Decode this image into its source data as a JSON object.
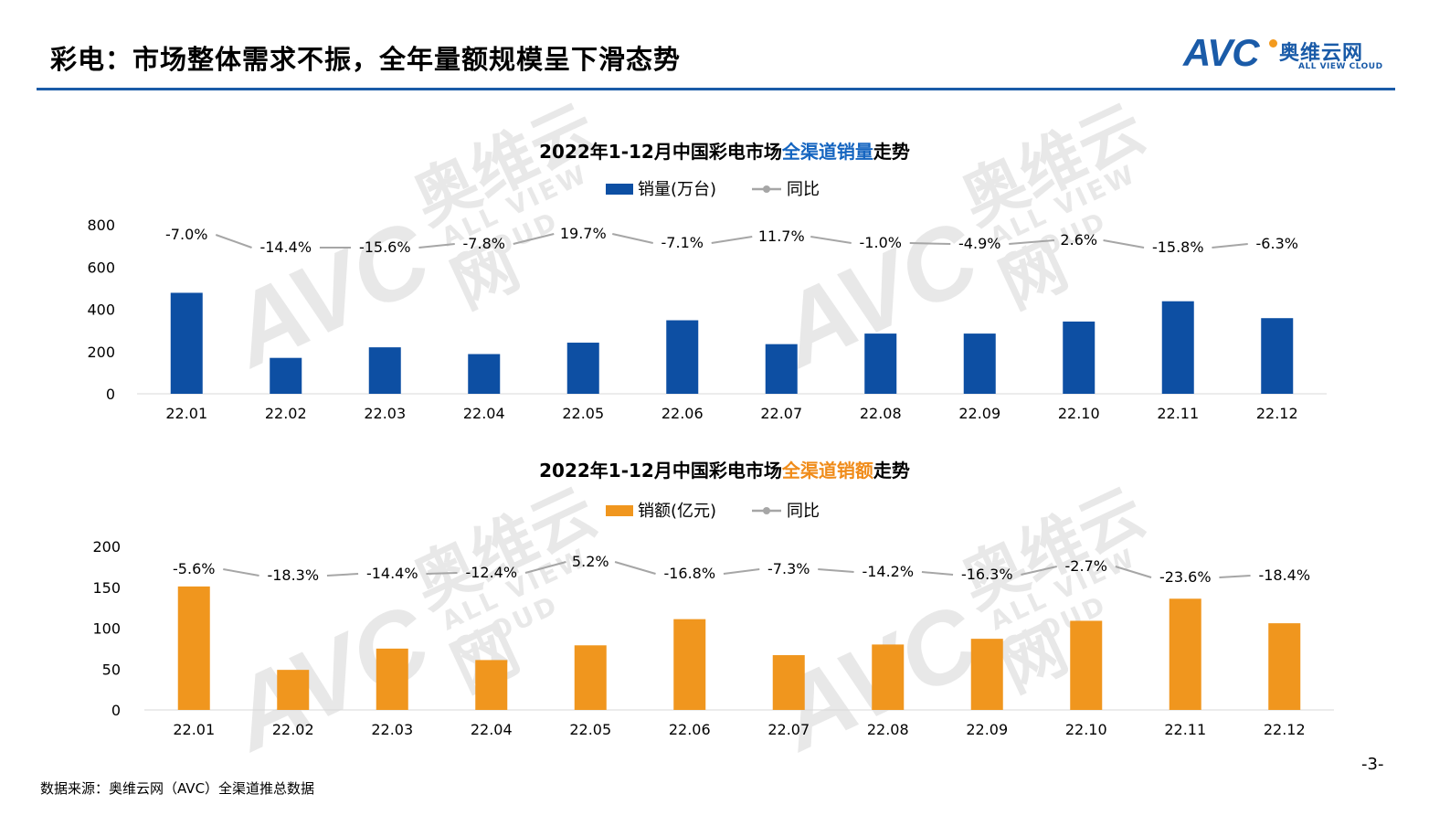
{
  "page": {
    "title": "彩电：市场整体需求不振，全年量额规模呈下滑态势",
    "logo_avc": "AVC",
    "logo_cn": "奥维云网",
    "logo_en": "ALL VIEW CLOUD",
    "source": "数据来源：奥维云网（AVC）全渠道推总数据",
    "page_number": "-3-",
    "colors": {
      "brand_blue": "#1a5ba8",
      "brand_orange": "#f39a1e"
    }
  },
  "chart_data": [
    {
      "type": "bar",
      "title_parts": [
        "2022年1-12月中国彩电市场",
        "全渠道销量",
        "走势"
      ],
      "title_highlight_color": "#1565c0",
      "categories": [
        "22.01",
        "22.02",
        "22.03",
        "22.04",
        "22.05",
        "22.06",
        "22.07",
        "22.08",
        "22.09",
        "22.10",
        "22.11",
        "22.12"
      ],
      "series": [
        {
          "name": "销量(万台)",
          "kind": "bar",
          "color": "#0d4fa3",
          "values": [
            478,
            170,
            220,
            188,
            242,
            348,
            235,
            285,
            285,
            342,
            438,
            358
          ]
        },
        {
          "name": "同比",
          "kind": "line",
          "color": "#a6a6a6",
          "labels": [
            "-7.0%",
            "-14.4%",
            "-15.6%",
            "-7.8%",
            "19.7%",
            "-7.1%",
            "11.7%",
            "-1.0%",
            "-4.9%",
            "2.6%",
            "-15.8%",
            "-6.3%"
          ]
        }
      ],
      "ylim": [
        0,
        800
      ],
      "yticks": [
        "0",
        "200",
        "400",
        "600",
        "800"
      ],
      "legend": "top-center"
    },
    {
      "type": "bar",
      "title_parts": [
        "2022年1-12月中国彩电市场",
        "全渠道销额",
        "走势"
      ],
      "title_highlight_color": "#f08c1a",
      "categories": [
        "22.01",
        "22.02",
        "22.03",
        "22.04",
        "22.05",
        "22.06",
        "22.07",
        "22.08",
        "22.09",
        "22.10",
        "22.11",
        "22.12"
      ],
      "series": [
        {
          "name": "销额(亿元)",
          "kind": "bar",
          "color": "#f0961e",
          "values": [
            151,
            49,
            75,
            61,
            79,
            111,
            67,
            80,
            87,
            109,
            136,
            106
          ]
        },
        {
          "name": "同比",
          "kind": "line",
          "color": "#a6a6a6",
          "labels": [
            "-5.6%",
            "-18.3%",
            "-14.4%",
            "-12.4%",
            "5.2%",
            "-16.8%",
            "-7.3%",
            "-14.2%",
            "-16.3%",
            "-2.7%",
            "-23.6%",
            "-18.4%"
          ]
        }
      ],
      "ylim": [
        0,
        200
      ],
      "yticks": [
        "0",
        "50",
        "100",
        "150",
        "200"
      ],
      "legend": "top-center"
    }
  ]
}
